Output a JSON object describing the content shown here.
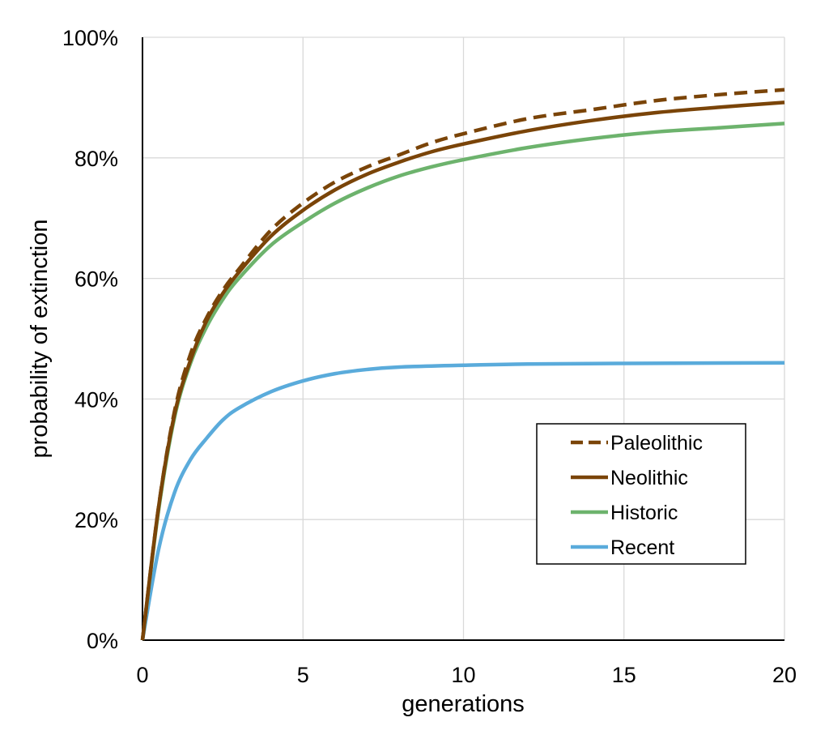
{
  "chart_data": {
    "type": "line",
    "title": "",
    "xlabel": "generations",
    "ylabel": "probability of extinction",
    "xlim": [
      0,
      20
    ],
    "ylim": [
      0,
      100
    ],
    "x_ticks": [
      0,
      5,
      10,
      15,
      20
    ],
    "y_ticks": [
      0,
      20,
      40,
      60,
      80,
      100
    ],
    "x_tick_labels": [
      "0",
      "5",
      "10",
      "15",
      "20"
    ],
    "y_tick_labels": [
      "0%",
      "20%",
      "40%",
      "60%",
      "80%",
      "100%"
    ],
    "grid": true,
    "legend_position": "lower-right",
    "series": [
      {
        "name": "Paleolithic",
        "color": "#7a4408",
        "dash": true,
        "x": [
          0,
          0.5,
          1,
          1.5,
          2,
          2.5,
          3,
          4,
          5,
          6,
          7,
          8,
          9,
          10,
          12,
          14,
          16,
          18,
          20
        ],
        "y": [
          0,
          22,
          38,
          47.5,
          53.5,
          58,
          61.5,
          68,
          72.5,
          76,
          78.5,
          80.5,
          82.5,
          84,
          86.5,
          88,
          89.5,
          90.5,
          91.3
        ]
      },
      {
        "name": "Neolithic",
        "color": "#7a4408",
        "dash": false,
        "x": [
          0,
          0.5,
          1,
          1.5,
          2,
          2.5,
          3,
          4,
          5,
          6,
          7,
          8,
          9,
          10,
          12,
          14,
          16,
          18,
          20
        ],
        "y": [
          0,
          22,
          37.5,
          46.5,
          53,
          57.5,
          61,
          67,
          71.3,
          74.7,
          77.3,
          79.3,
          81,
          82.3,
          84.5,
          86.2,
          87.5,
          88.4,
          89.2
        ]
      },
      {
        "name": "Historic",
        "color": "#6db36d",
        "dash": false,
        "x": [
          0,
          0.5,
          1,
          1.5,
          2,
          2.5,
          3,
          4,
          5,
          6,
          7,
          8,
          9,
          10,
          12,
          14,
          16,
          18,
          20
        ],
        "y": [
          0,
          21.5,
          37,
          46,
          52,
          56.5,
          60,
          65.5,
          69.3,
          72.5,
          75,
          77,
          78.5,
          79.7,
          81.7,
          83.2,
          84.3,
          85,
          85.7
        ]
      },
      {
        "name": "Recent",
        "color": "#5aabdb",
        "dash": false,
        "x": [
          0,
          0.5,
          1,
          1.5,
          2,
          2.5,
          3,
          4,
          5,
          6,
          7,
          8,
          10,
          12,
          15,
          20
        ],
        "y": [
          0,
          15,
          24.5,
          30,
          33.5,
          36.5,
          38.5,
          41.2,
          43,
          44.2,
          44.9,
          45.3,
          45.6,
          45.8,
          45.9,
          46
        ]
      }
    ]
  }
}
